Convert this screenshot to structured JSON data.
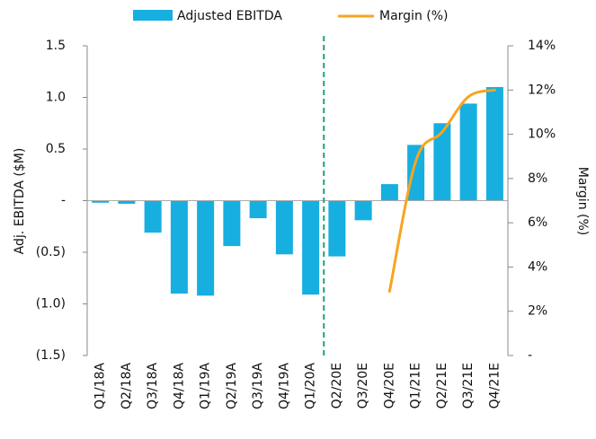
{
  "chart_data": {
    "type": "bar",
    "y_label": "Adj. EBITDA ($M)",
    "y2_label": "Margin (%)",
    "categories": [
      "Q1/18A",
      "Q2/18A",
      "Q3/18A",
      "Q4/18A",
      "Q1/19A",
      "Q2/19A",
      "Q3/19A",
      "Q4/19A",
      "Q1/20A",
      "Q2/20E",
      "Q3/20E",
      "Q4/20E",
      "Q1/21E",
      "Q2/21E",
      "Q3/21E",
      "Q4/21E"
    ],
    "series": [
      {
        "name": "Adjusted EBITDA",
        "type": "bar",
        "color": "#16afe0",
        "values": [
          -0.02,
          -0.03,
          -0.31,
          -0.9,
          -0.92,
          -0.44,
          -0.17,
          -0.52,
          -0.91,
          -0.54,
          -0.19,
          0.16,
          0.54,
          0.75,
          0.94,
          1.1
        ]
      },
      {
        "name": "Margin (%)",
        "type": "line",
        "axis": "y2",
        "color": "#f7a51e",
        "values": [
          null,
          null,
          null,
          null,
          null,
          null,
          null,
          null,
          null,
          null,
          null,
          2.9,
          8.8,
          10.1,
          11.7,
          12.0
        ]
      }
    ],
    "ylim": [
      -1.5,
      1.5
    ],
    "yticks": [
      1.5,
      {
        "value": 1.0,
        "label": "1.0"
      },
      0.5,
      {
        "value": 0,
        "label": "-"
      },
      {
        "value": -0.5,
        "label": "(0.5)"
      },
      {
        "value": -1.0,
        "label": "(1.0)"
      },
      {
        "value": -1.5,
        "label": "(1.5)"
      }
    ],
    "y2lim": [
      0,
      14
    ],
    "y2ticks": [
      {
        "value": 14,
        "label": "14%"
      },
      {
        "value": 12,
        "label": "12%"
      },
      {
        "value": 10,
        "label": "10%"
      },
      {
        "value": 8,
        "label": "8%"
      },
      {
        "value": 6,
        "label": "6%"
      },
      {
        "value": 4,
        "label": "4%"
      },
      {
        "value": 2,
        "label": "2%"
      },
      {
        "value": 0,
        "label": "-"
      }
    ],
    "legend": "top"
  }
}
